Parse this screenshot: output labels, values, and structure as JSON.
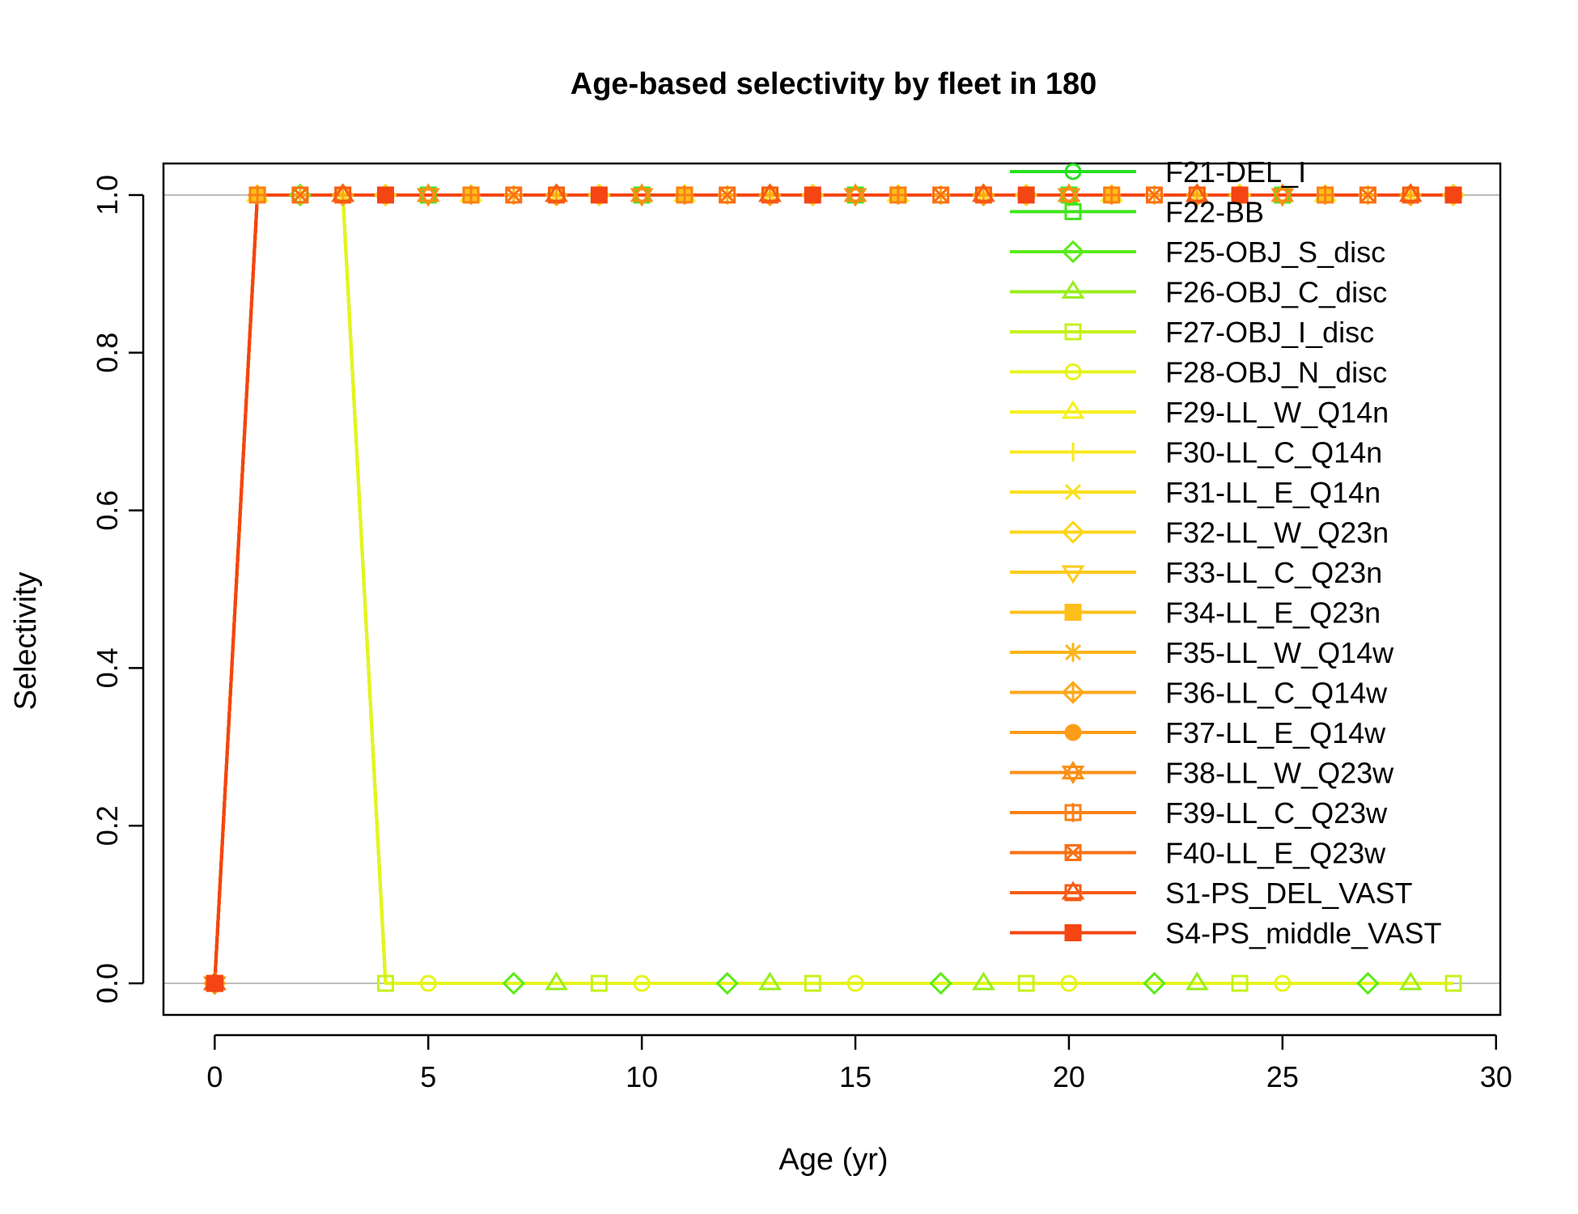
{
  "chart_data": {
    "type": "line",
    "title": "Age-based selectivity by fleet in 180",
    "xlabel": "Age (yr)",
    "ylabel": "Selectivity",
    "xlim": [
      -1.2,
      30.1
    ],
    "ylim": [
      -0.04,
      1.04
    ],
    "xticks": [
      0,
      5,
      10,
      15,
      20,
      25,
      30
    ],
    "yticks": [
      0.0,
      0.2,
      0.4,
      0.6,
      0.8,
      1.0
    ],
    "xtick_labels": [
      "0",
      "5",
      "10",
      "15",
      "20",
      "25",
      "30"
    ],
    "ytick_labels": [
      "0.0",
      "0.2",
      "0.4",
      "0.6",
      "0.8",
      "1.0"
    ],
    "grid_y_at": [
      0,
      1
    ],
    "legend_position": "top-right",
    "x": [
      0,
      1,
      2,
      3,
      4,
      5,
      6,
      7,
      8,
      9,
      10,
      11,
      12,
      13,
      14,
      15,
      16,
      17,
      18,
      19,
      20,
      21,
      22,
      23,
      24,
      25,
      26,
      27,
      28,
      29
    ],
    "series": [
      {
        "name": "F21-DEL_I",
        "color": "#26e11f",
        "marker": "circle",
        "marker_offset": 0,
        "values": [
          0,
          1,
          1,
          1,
          1,
          1,
          1,
          1,
          1,
          1,
          1,
          1,
          1,
          1,
          1,
          1,
          1,
          1,
          1,
          1,
          1,
          1,
          1,
          1,
          1,
          1,
          1,
          1,
          1,
          1
        ]
      },
      {
        "name": "F22-BB",
        "color": "#3fe61c",
        "marker": "square",
        "marker_offset": 0,
        "values": [
          0,
          1,
          1,
          1,
          1,
          1,
          1,
          1,
          1,
          1,
          1,
          1,
          1,
          1,
          1,
          1,
          1,
          1,
          1,
          1,
          1,
          1,
          1,
          1,
          1,
          1,
          1,
          1,
          1,
          1
        ]
      },
      {
        "name": "F25-OBJ_S_disc",
        "color": "#5ceb1a",
        "marker": "diamond",
        "marker_offset": 2,
        "values": [
          0,
          1,
          1,
          1,
          0,
          0,
          0,
          0,
          0,
          0,
          0,
          0,
          0,
          0,
          0,
          0,
          0,
          0,
          0,
          0,
          0,
          0,
          0,
          0,
          0,
          0,
          0,
          0,
          0,
          0
        ]
      },
      {
        "name": "F26-OBJ_C_disc",
        "color": "#99ee1b",
        "marker": "triangle",
        "marker_offset": 3,
        "values": [
          0,
          1,
          1,
          1,
          0,
          0,
          0,
          0,
          0,
          0,
          0,
          0,
          0,
          0,
          0,
          0,
          0,
          0,
          0,
          0,
          0,
          0,
          0,
          0,
          0,
          0,
          0,
          0,
          0,
          0
        ]
      },
      {
        "name": "F27-OBJ_I_disc",
        "color": "#c5f21c",
        "marker": "square",
        "marker_offset": 4,
        "values": [
          0,
          1,
          1,
          1,
          0,
          0,
          0,
          0,
          0,
          0,
          0,
          0,
          0,
          0,
          0,
          0,
          0,
          0,
          0,
          0,
          0,
          0,
          0,
          0,
          0,
          0,
          0,
          0,
          0,
          0
        ]
      },
      {
        "name": "F28-OBJ_N_disc",
        "color": "#e6f41d",
        "marker": "circle",
        "marker_offset": 0,
        "values": [
          0,
          1,
          1,
          1,
          0,
          0,
          0,
          0,
          0,
          0,
          0,
          0,
          0,
          0,
          0,
          0,
          0,
          0,
          0,
          0,
          0,
          0,
          0,
          0,
          0,
          0,
          0,
          0,
          0,
          0
        ]
      },
      {
        "name": "F29-LL_W_Q14n",
        "color": "#f6f01d",
        "marker": "triangle",
        "marker_offset": 1,
        "values": [
          0,
          1,
          1,
          1,
          1,
          1,
          1,
          1,
          1,
          1,
          1,
          1,
          1,
          1,
          1,
          1,
          1,
          1,
          1,
          1,
          1,
          1,
          1,
          1,
          1,
          1,
          1,
          1,
          1,
          1
        ]
      },
      {
        "name": "F30-LL_C_Q14n",
        "color": "#f9e81d",
        "marker": "plus",
        "marker_offset": 2,
        "values": [
          0,
          1,
          1,
          1,
          1,
          1,
          1,
          1,
          1,
          1,
          1,
          1,
          1,
          1,
          1,
          1,
          1,
          1,
          1,
          1,
          1,
          1,
          1,
          1,
          1,
          1,
          1,
          1,
          1,
          1
        ]
      },
      {
        "name": "F31-LL_E_Q14n",
        "color": "#fbe01c",
        "marker": "cross",
        "marker_offset": 3,
        "values": [
          0,
          1,
          1,
          1,
          1,
          1,
          1,
          1,
          1,
          1,
          1,
          1,
          1,
          1,
          1,
          1,
          1,
          1,
          1,
          1,
          1,
          1,
          1,
          1,
          1,
          1,
          1,
          1,
          1,
          1
        ]
      },
      {
        "name": "F32-LL_W_Q23n",
        "color": "#fdd51b",
        "marker": "diamond",
        "marker_offset": 4,
        "values": [
          0,
          1,
          1,
          1,
          1,
          1,
          1,
          1,
          1,
          1,
          1,
          1,
          1,
          1,
          1,
          1,
          1,
          1,
          1,
          1,
          1,
          1,
          1,
          1,
          1,
          1,
          1,
          1,
          1,
          1
        ]
      },
      {
        "name": "F33-LL_C_Q23n",
        "color": "#fdcb1a",
        "marker": "triangle-down",
        "marker_offset": 0,
        "values": [
          0,
          1,
          1,
          1,
          1,
          1,
          1,
          1,
          1,
          1,
          1,
          1,
          1,
          1,
          1,
          1,
          1,
          1,
          1,
          1,
          1,
          1,
          1,
          1,
          1,
          1,
          1,
          1,
          1,
          1
        ]
      },
      {
        "name": "F34-LL_E_Q23n",
        "color": "#fdc01a",
        "marker": "square-filled",
        "marker_offset": 1,
        "values": [
          0,
          1,
          1,
          1,
          1,
          1,
          1,
          1,
          1,
          1,
          1,
          1,
          1,
          1,
          1,
          1,
          1,
          1,
          1,
          1,
          1,
          1,
          1,
          1,
          1,
          1,
          1,
          1,
          1,
          1
        ]
      },
      {
        "name": "F35-LL_W_Q14w",
        "color": "#fdb519",
        "marker": "asterisk",
        "marker_offset": 2,
        "values": [
          0,
          1,
          1,
          1,
          1,
          1,
          1,
          1,
          1,
          1,
          1,
          1,
          1,
          1,
          1,
          1,
          1,
          1,
          1,
          1,
          1,
          1,
          1,
          1,
          1,
          1,
          1,
          1,
          1,
          1
        ]
      },
      {
        "name": "F36-LL_C_Q14w",
        "color": "#fca918",
        "marker": "diamond-plus",
        "marker_offset": 3,
        "values": [
          0,
          1,
          1,
          1,
          1,
          1,
          1,
          1,
          1,
          1,
          1,
          1,
          1,
          1,
          1,
          1,
          1,
          1,
          1,
          1,
          1,
          1,
          1,
          1,
          1,
          1,
          1,
          1,
          1,
          1
        ]
      },
      {
        "name": "F37-LL_E_Q14w",
        "color": "#fc9c17",
        "marker": "circle-filled",
        "marker_offset": 4,
        "values": [
          0,
          1,
          1,
          1,
          1,
          1,
          1,
          1,
          1,
          1,
          1,
          1,
          1,
          1,
          1,
          1,
          1,
          1,
          1,
          1,
          1,
          1,
          1,
          1,
          1,
          1,
          1,
          1,
          1,
          1
        ]
      },
      {
        "name": "F38-LL_W_Q23w",
        "color": "#fb8f16",
        "marker": "star-of-david",
        "marker_offset": 0,
        "values": [
          0,
          1,
          1,
          1,
          1,
          1,
          1,
          1,
          1,
          1,
          1,
          1,
          1,
          1,
          1,
          1,
          1,
          1,
          1,
          1,
          1,
          1,
          1,
          1,
          1,
          1,
          1,
          1,
          1,
          1
        ]
      },
      {
        "name": "F39-LL_C_Q23w",
        "color": "#fa8015",
        "marker": "square-plus",
        "marker_offset": 1,
        "values": [
          0,
          1,
          1,
          1,
          1,
          1,
          1,
          1,
          1,
          1,
          1,
          1,
          1,
          1,
          1,
          1,
          1,
          1,
          1,
          1,
          1,
          1,
          1,
          1,
          1,
          1,
          1,
          1,
          1,
          1
        ]
      },
      {
        "name": "F40-LL_E_Q23w",
        "color": "#f97014",
        "marker": "square-cross",
        "marker_offset": 2,
        "values": [
          0,
          1,
          1,
          1,
          1,
          1,
          1,
          1,
          1,
          1,
          1,
          1,
          1,
          1,
          1,
          1,
          1,
          1,
          1,
          1,
          1,
          1,
          1,
          1,
          1,
          1,
          1,
          1,
          1,
          1
        ]
      },
      {
        "name": "S1-PS_DEL_VAST",
        "color": "#f65b13",
        "marker": "square-triangle",
        "marker_offset": 3,
        "values": [
          0,
          1,
          1,
          1,
          1,
          1,
          1,
          1,
          1,
          1,
          1,
          1,
          1,
          1,
          1,
          1,
          1,
          1,
          1,
          1,
          1,
          1,
          1,
          1,
          1,
          1,
          1,
          1,
          1,
          1
        ]
      },
      {
        "name": "S4-PS_middle_VAST",
        "color": "#f44512",
        "marker": "square-filled",
        "marker_offset": 4,
        "values": [
          0,
          1,
          1,
          1,
          1,
          1,
          1,
          1,
          1,
          1,
          1,
          1,
          1,
          1,
          1,
          1,
          1,
          1,
          1,
          1,
          1,
          1,
          1,
          1,
          1,
          1,
          1,
          1,
          1,
          1
        ]
      }
    ]
  }
}
